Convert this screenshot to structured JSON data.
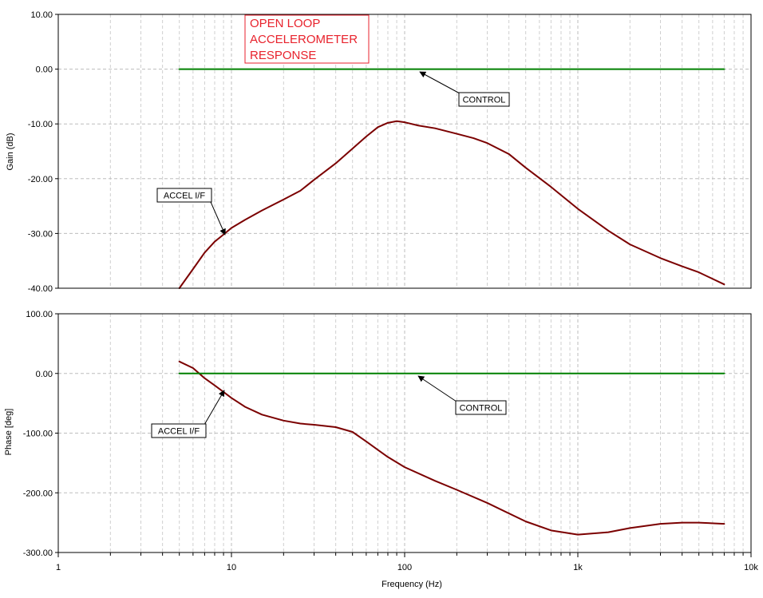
{
  "title": {
    "lines": [
      "OPEN LOOP",
      "ACCELEROMETER",
      "RESPONSE"
    ]
  },
  "colors": {
    "title": "#e8222c",
    "accel": "#7b0000",
    "control": "#008000",
    "grid": "#c8c8c8"
  },
  "chart_data": [
    {
      "type": "line",
      "name": "gain-plot",
      "ylabel": "Gain (dB)",
      "xscale": "log",
      "xlim": [
        1,
        10000
      ],
      "ylim": [
        -40,
        10
      ],
      "yticks": [
        "10.00",
        "0.00",
        "-10.00",
        "-20.00",
        "-30.00",
        "-40.00"
      ],
      "ytick_values": [
        10,
        0,
        -10,
        -20,
        -30,
        -40
      ],
      "grid": true,
      "series": [
        {
          "name": "ACCEL I/F",
          "x": [
            5,
            6,
            7,
            8,
            9,
            10,
            12,
            15,
            20,
            25,
            30,
            40,
            50,
            60,
            70,
            80,
            90,
            100,
            120,
            150,
            200,
            250,
            300,
            400,
            500,
            700,
            1000,
            1500,
            2000,
            3000,
            4000,
            5000,
            7000
          ],
          "y": [
            -40,
            -36.5,
            -33.5,
            -31.5,
            -30.2,
            -29,
            -27.5,
            -25.8,
            -23.8,
            -22.2,
            -20.2,
            -17.2,
            -14.5,
            -12.3,
            -10.6,
            -9.8,
            -9.5,
            -9.7,
            -10.3,
            -10.8,
            -11.8,
            -12.6,
            -13.5,
            -15.5,
            -18,
            -21.5,
            -25.5,
            -29.5,
            -32,
            -34.5,
            -36,
            -37.1,
            -39.3
          ]
        },
        {
          "name": "CONTROL",
          "x": [
            5,
            7000
          ],
          "y": [
            0,
            0
          ]
        }
      ],
      "annotations": [
        {
          "text": "CONTROL",
          "x": 120,
          "y": 0
        },
        {
          "text": "ACCEL I/F",
          "x": 9,
          "y": -30
        }
      ]
    },
    {
      "type": "line",
      "name": "phase-plot",
      "xlabel": "Frequency (Hz)",
      "ylabel": "Phase [deg]",
      "xscale": "log",
      "xlim": [
        1,
        10000
      ],
      "ylim": [
        -300,
        100
      ],
      "xticks": [
        "1",
        "10",
        "100",
        "1k",
        "10k"
      ],
      "xtick_values": [
        1,
        10,
        100,
        1000,
        10000
      ],
      "yticks": [
        "100.00",
        "0.00",
        "-100.00",
        "-200.00",
        "-300.00"
      ],
      "ytick_values": [
        100,
        0,
        -100,
        -200,
        -300
      ],
      "grid": true,
      "series": [
        {
          "name": "ACCEL I/F",
          "x": [
            5,
            6,
            7,
            8,
            9,
            10,
            12,
            15,
            20,
            25,
            30,
            40,
            50,
            60,
            70,
            80,
            100,
            150,
            200,
            300,
            500,
            700,
            1000,
            1500,
            2000,
            3000,
            4000,
            5000,
            7000
          ],
          "y": [
            20,
            9,
            -8,
            -20,
            -31,
            -41,
            -56,
            -69,
            -79,
            -84,
            -86,
            -90,
            -98,
            -114,
            -128,
            -140,
            -157,
            -180,
            -195,
            -217,
            -248,
            -263,
            -270,
            -266,
            -259,
            -252,
            -250,
            -250,
            -252
          ]
        },
        {
          "name": "CONTROL",
          "x": [
            5,
            7000
          ],
          "y": [
            0,
            0
          ]
        }
      ],
      "annotations": [
        {
          "text": "CONTROL",
          "x": 120,
          "y": 0
        },
        {
          "text": "ACCEL I/F",
          "x": 9,
          "y": -30
        }
      ]
    }
  ]
}
